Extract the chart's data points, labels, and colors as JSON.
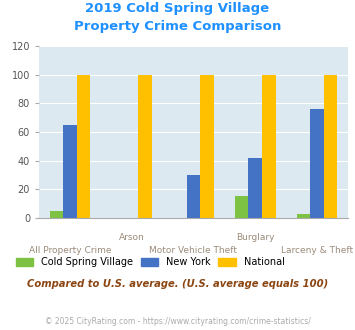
{
  "title_line1": "2019 Cold Spring Village",
  "title_line2": "Property Crime Comparison",
  "categories": [
    "All Property Crime",
    "Arson",
    "Motor Vehicle Theft",
    "Burglary",
    "Larceny & Theft"
  ],
  "cold_spring": [
    5,
    0,
    0,
    15,
    3
  ],
  "new_york": [
    65,
    0,
    30,
    42,
    76
  ],
  "national": [
    100,
    100,
    100,
    100,
    100
  ],
  "colors": {
    "cold_spring": "#7DC242",
    "new_york": "#4472C4",
    "national": "#FFC000"
  },
  "ylim": [
    0,
    120
  ],
  "yticks": [
    0,
    20,
    40,
    60,
    80,
    100,
    120
  ],
  "plot_bg": "#DCE9F0",
  "title_color": "#1E90FF",
  "xlabel_upper_color": "#9B8B7A",
  "xlabel_lower_color": "#9B8B7A",
  "legend_labels": [
    "Cold Spring Village",
    "New York",
    "National"
  ],
  "subtitle": "Compared to U.S. average. (U.S. average equals 100)",
  "footer": "© 2025 CityRating.com - https://www.cityrating.com/crime-statistics/",
  "subtitle_color": "#8B4513",
  "footer_color": "#AAAAAA",
  "bar_width": 0.22
}
